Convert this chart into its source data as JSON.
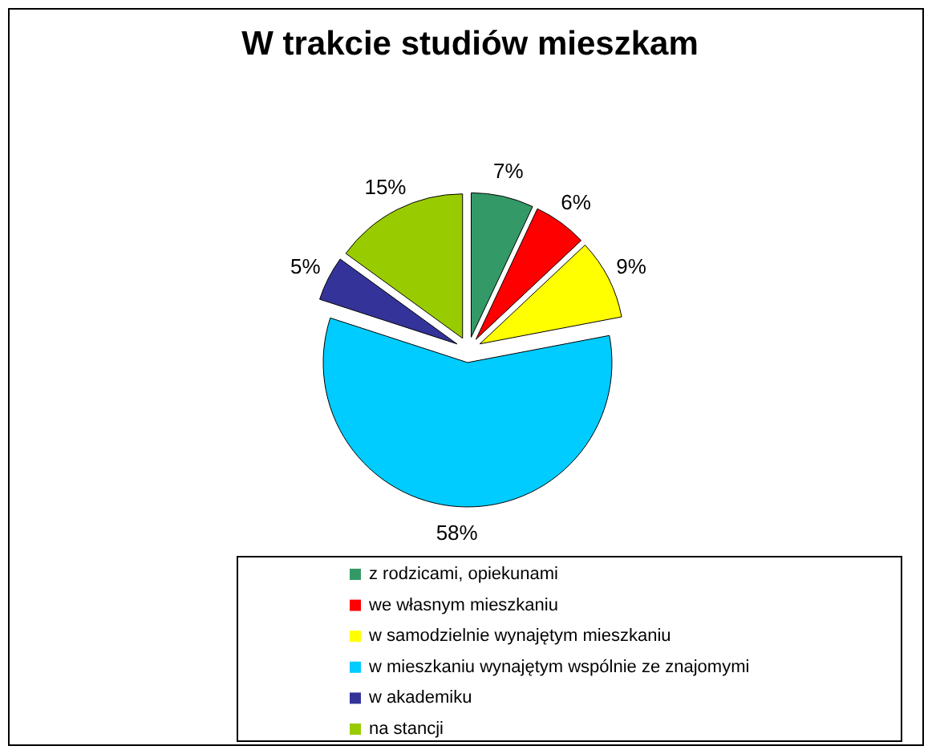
{
  "chart_data": {
    "type": "pie",
    "title": "W trakcie studiów mieszkam",
    "categories": [
      "z rodzicami, opiekunami",
      "we własnym mieszkaniu",
      "w samodzielnie wynajętym mieszkaniu",
      "w mieszkaniu wynajętym wspólnie ze znajomymi",
      "w akademiku",
      "na stancji"
    ],
    "values": [
      7,
      6,
      9,
      58,
      5,
      15
    ],
    "colors": [
      "#339966",
      "#ff0000",
      "#ffff00",
      "#00ccff",
      "#333399",
      "#99cc00"
    ],
    "value_labels": [
      "7%",
      "6%",
      "9%",
      "58%",
      "5%",
      "15%"
    ],
    "legend": "bottom"
  }
}
